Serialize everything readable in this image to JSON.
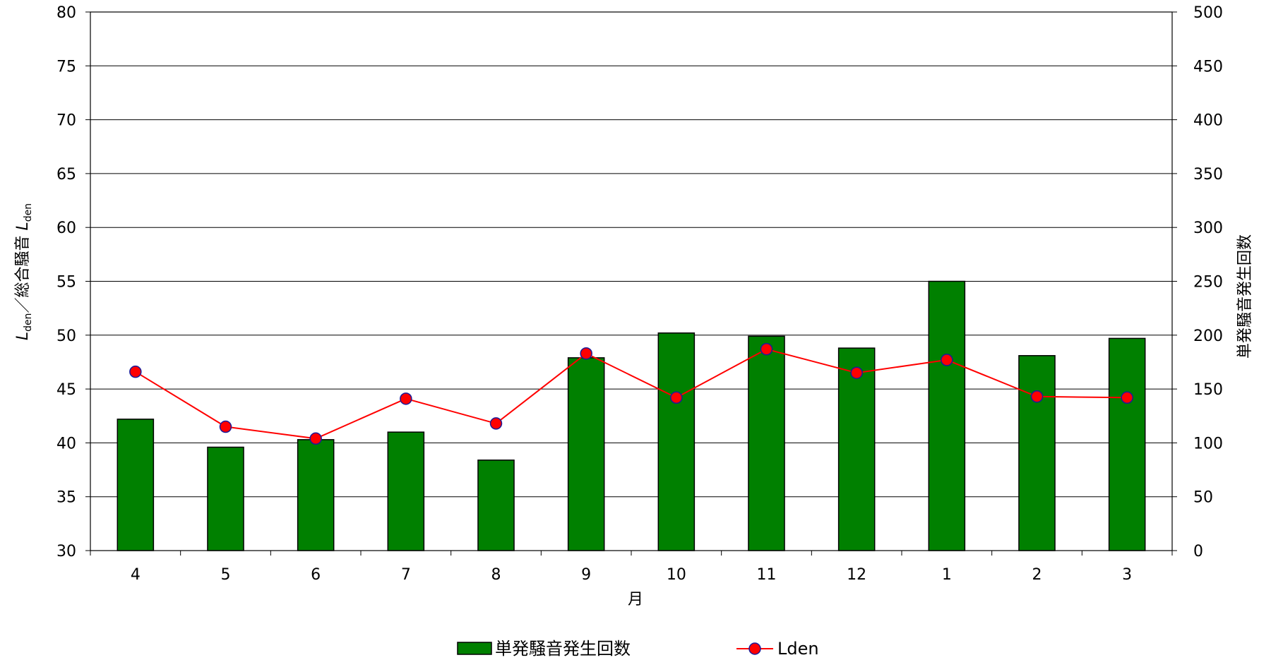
{
  "chart_data": {
    "type": "bar",
    "categories": [
      "4",
      "5",
      "6",
      "7",
      "8",
      "9",
      "10",
      "11",
      "12",
      "1",
      "2",
      "3"
    ],
    "xlabel": "月",
    "y_left": {
      "label_prefix": "L",
      "label_prefix_sub": "den",
      "label_main": "／総合騒音 ",
      "label_suffix": "L",
      "label_suffix_sub": "den",
      "ylim": [
        30,
        80
      ],
      "ticks": [
        30,
        35,
        40,
        45,
        50,
        55,
        60,
        65,
        70,
        75,
        80
      ]
    },
    "y_right": {
      "label": "単発騒音発生回数",
      "ylim": [
        0,
        500
      ],
      "ticks": [
        0,
        50,
        100,
        150,
        200,
        250,
        300,
        350,
        400,
        450,
        500
      ]
    },
    "grid": true,
    "legend_position": "bottom",
    "series": [
      {
        "name": "単発騒音発生回数",
        "type": "bar",
        "axis": "right",
        "color": "#008000",
        "values": [
          122,
          96,
          103,
          110,
          84,
          179,
          202,
          199,
          188,
          250,
          181,
          197
        ]
      },
      {
        "name": "Lden",
        "type": "line",
        "axis": "left",
        "color": "#ff0000",
        "marker_fill": "#ff0000",
        "marker_edge": "#1a1a99",
        "values": [
          46.6,
          41.5,
          40.4,
          44.1,
          41.8,
          48.3,
          44.2,
          48.7,
          46.5,
          47.7,
          44.3,
          44.2
        ]
      }
    ]
  }
}
